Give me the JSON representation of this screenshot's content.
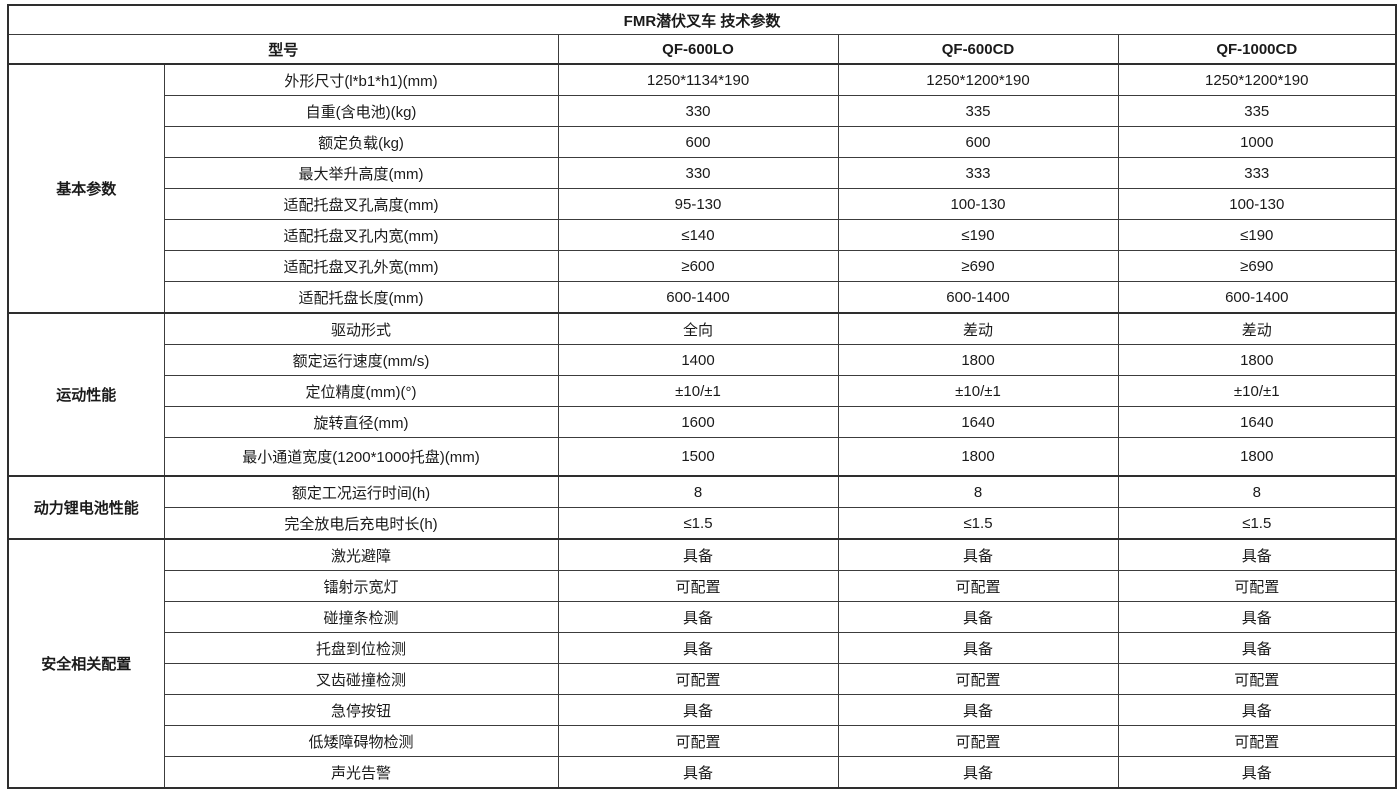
{
  "title": "FMR潜伏叉车 技术参数",
  "header": {
    "model_label": "型号",
    "models": [
      "QF-600LO",
      "QF-600CD",
      "QF-1000CD"
    ]
  },
  "sections": [
    {
      "name": "基本参数",
      "rows": [
        {
          "label": "外形尺寸(l*b1*h1)(mm)",
          "values": [
            "1250*1134*190",
            "1250*1200*190",
            "1250*1200*190"
          ]
        },
        {
          "label": "自重(含电池)(kg)",
          "values": [
            "330",
            "335",
            "335"
          ]
        },
        {
          "label": "额定负载(kg)",
          "values": [
            "600",
            "600",
            "1000"
          ]
        },
        {
          "label": "最大举升高度(mm)",
          "values": [
            "330",
            "333",
            "333"
          ]
        },
        {
          "label": "适配托盘叉孔高度(mm)",
          "values": [
            "95-130",
            "100-130",
            "100-130"
          ]
        },
        {
          "label": "适配托盘叉孔内宽(mm)",
          "values": [
            "≤140",
            "≤190",
            "≤190"
          ]
        },
        {
          "label": "适配托盘叉孔外宽(mm)",
          "values": [
            "≥600",
            "≥690",
            "≥690"
          ]
        },
        {
          "label": "适配托盘长度(mm)",
          "values": [
            "600-1400",
            "600-1400",
            "600-1400"
          ]
        }
      ]
    },
    {
      "name": "运动性能",
      "rows": [
        {
          "label": "驱动形式",
          "values": [
            "全向",
            "差动",
            "差动"
          ]
        },
        {
          "label": "额定运行速度(mm/s)",
          "values": [
            "1400",
            "1800",
            "1800"
          ]
        },
        {
          "label": "定位精度(mm)(°)",
          "values": [
            "±10/±1",
            "±10/±1",
            "±10/±1"
          ]
        },
        {
          "label": "旋转直径(mm)",
          "values": [
            "1600",
            "1640",
            "1640"
          ]
        },
        {
          "label": "最小通道宽度(1200*1000托盘)(mm)",
          "values": [
            "1500",
            "1800",
            "1800"
          ]
        }
      ]
    },
    {
      "name": "动力锂电池性能",
      "rows": [
        {
          "label": "额定工况运行时间(h)",
          "values": [
            "8",
            "8",
            "8"
          ]
        },
        {
          "label": "完全放电后充电时长(h)",
          "values": [
            "≤1.5",
            "≤1.5",
            "≤1.5"
          ]
        }
      ]
    },
    {
      "name": "安全相关配置",
      "rows": [
        {
          "label": "激光避障",
          "values": [
            "具备",
            "具备",
            "具备"
          ]
        },
        {
          "label": "镭射示宽灯",
          "values": [
            "可配置",
            "可配置",
            "可配置"
          ]
        },
        {
          "label": "碰撞条检测",
          "values": [
            "具备",
            "具备",
            "具备"
          ]
        },
        {
          "label": "托盘到位检测",
          "values": [
            "具备",
            "具备",
            "具备"
          ]
        },
        {
          "label": "叉齿碰撞检测",
          "values": [
            "可配置",
            "可配置",
            "可配置"
          ]
        },
        {
          "label": "急停按钮",
          "values": [
            "具备",
            "具备",
            "具备"
          ]
        },
        {
          "label": "低矮障碍物检测",
          "values": [
            "可配置",
            "可配置",
            "可配置"
          ]
        },
        {
          "label": "声光告警",
          "values": [
            "具备",
            "具备",
            "具备"
          ]
        }
      ]
    }
  ],
  "colors": {
    "border_thick": "#2e2e2e",
    "border_thin": "#3c3c3c",
    "text": "#1a1a1a",
    "background": "#ffffff"
  }
}
